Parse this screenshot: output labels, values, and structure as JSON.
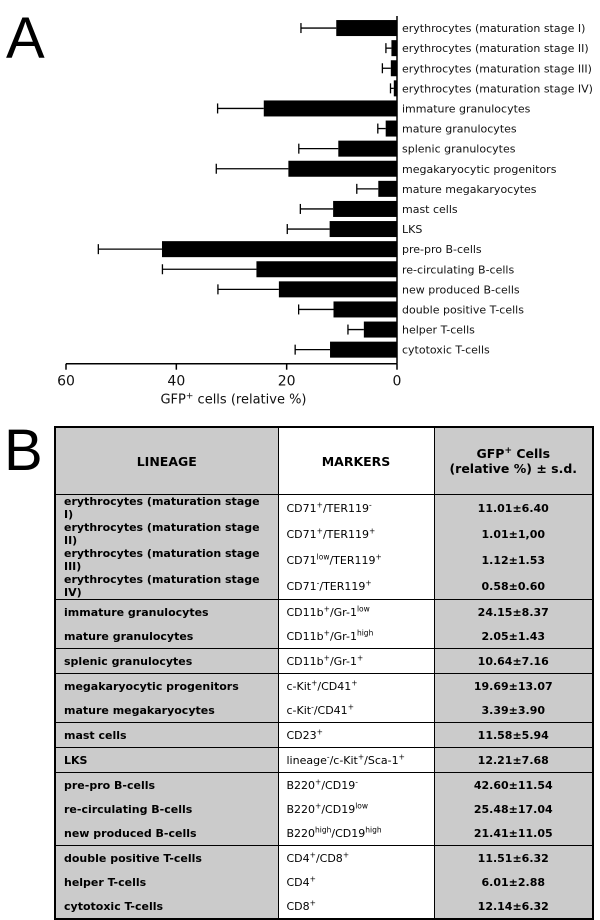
{
  "panel_a_label": "A",
  "panel_b_label": "B",
  "chart_data": {
    "type": "bar",
    "orientation": "horizontal",
    "categories": [
      "erythrocytes (maturation stage I)",
      "erythrocytes (maturation stage II)",
      "erythrocytes (maturation stage III)",
      "erythrocytes (maturation stage IV)",
      "immature granulocytes",
      "mature granulocytes",
      "splenic granulocytes",
      "megakaryocytic progenitors",
      "mature megakaryocytes",
      "mast cells",
      "LKS",
      "pre-pro B-cells",
      "re-circulating B-cells",
      "new produced B-cells",
      "double positive T-cells",
      "helper T-cells",
      "cytotoxic T-cells"
    ],
    "values": [
      11.01,
      1.01,
      1.12,
      0.58,
      24.15,
      2.05,
      10.64,
      19.69,
      3.39,
      11.58,
      12.21,
      42.6,
      25.48,
      21.41,
      11.51,
      6.01,
      12.14
    ],
    "errors": [
      6.4,
      1.0,
      1.53,
      0.6,
      8.37,
      1.43,
      7.16,
      13.07,
      3.9,
      5.94,
      7.68,
      11.54,
      17.04,
      11.05,
      6.32,
      2.88,
      6.32
    ],
    "xlim": [
      60,
      0
    ],
    "xticks": [
      "60",
      "40",
      "20",
      "0"
    ],
    "xlabel": "GFP",
    "xlabel_sup": "+",
    "xlabel_rest": " cells (relative %)",
    "bar_color": "#000000"
  },
  "table": {
    "headers": {
      "lineage": "LINEAGE",
      "markers": "MARKERS",
      "gfp_line1": "GFP",
      "gfp_sup": "+",
      "gfp_line1_rest": " Cells",
      "gfp_line2": "(relative %) ± s.d."
    },
    "rows": [
      {
        "lineage": "erythrocytes (maturation stage I)",
        "markers": [
          [
            "CD71",
            "+"
          ],
          [
            "/TER119",
            "-"
          ]
        ],
        "value": "11.01±6.40",
        "group_start": true
      },
      {
        "lineage": "erythrocytes (maturation stage II)",
        "markers": [
          [
            "CD71",
            "+"
          ],
          [
            "/TER119",
            "+"
          ]
        ],
        "value": "1.01±1,00",
        "group_start": false
      },
      {
        "lineage": "erythrocytes (maturation stage III)",
        "markers": [
          [
            "CD71",
            "low"
          ],
          [
            "/TER119",
            "+"
          ]
        ],
        "value": "1.12±1.53",
        "group_start": false
      },
      {
        "lineage": "erythrocytes (maturation stage IV)",
        "markers": [
          [
            "CD71",
            "-"
          ],
          [
            "/TER119",
            "+"
          ]
        ],
        "value": "0.58±0.60",
        "group_start": false
      },
      {
        "lineage": "immature granulocytes",
        "markers": [
          [
            "CD11b",
            "+"
          ],
          [
            "/Gr-1",
            "low"
          ]
        ],
        "value": "24.15±8.37",
        "group_start": true
      },
      {
        "lineage": "mature granulocytes",
        "markers": [
          [
            "CD11b",
            "+"
          ],
          [
            "/Gr-1",
            "high"
          ]
        ],
        "value": "2.05±1.43",
        "group_start": false
      },
      {
        "lineage": "splenic granulocytes",
        "markers": [
          [
            "CD11b",
            "+"
          ],
          [
            "/Gr-1",
            "+"
          ]
        ],
        "value": "10.64±7.16",
        "group_start": true
      },
      {
        "lineage": "megakaryocytic progenitors",
        "markers": [
          [
            "c-Kit",
            "+"
          ],
          [
            "/CD41",
            "+"
          ]
        ],
        "value": "19.69±13.07",
        "group_start": true
      },
      {
        "lineage": "mature megakaryocytes",
        "markers": [
          [
            "c-Kit",
            "-"
          ],
          [
            "/CD41",
            "+"
          ]
        ],
        "value": "3.39±3.90",
        "group_start": false
      },
      {
        "lineage": "mast cells",
        "markers": [
          [
            "CD23",
            "+"
          ]
        ],
        "value": "11.58±5.94",
        "group_start": true
      },
      {
        "lineage": "LKS",
        "markers": [
          [
            "lineage",
            "-"
          ],
          [
            "/c-Kit",
            "+"
          ],
          [
            "/Sca-1",
            "+"
          ]
        ],
        "value": "12.21±7.68",
        "group_start": true
      },
      {
        "lineage": "pre-pro B-cells",
        "markers": [
          [
            "B220",
            "+"
          ],
          [
            "/CD19",
            "-"
          ]
        ],
        "value": "42.60±11.54",
        "group_start": true
      },
      {
        "lineage": "re-circulating B-cells",
        "markers": [
          [
            "B220",
            "+"
          ],
          [
            "/CD19",
            "low"
          ]
        ],
        "value": "25.48±17.04",
        "group_start": false
      },
      {
        "lineage": "new produced B-cells",
        "markers": [
          [
            "B220",
            "high"
          ],
          [
            "/CD19",
            "high"
          ]
        ],
        "value": "21.41±11.05",
        "group_start": false
      },
      {
        "lineage": "double positive T-cells",
        "markers": [
          [
            "CD4",
            "+"
          ],
          [
            "/CD8",
            "+"
          ]
        ],
        "value": "11.51±6.32",
        "group_start": true
      },
      {
        "lineage": "helper T-cells",
        "markers": [
          [
            "CD4",
            "+"
          ]
        ],
        "value": "6.01±2.88",
        "group_start": false
      },
      {
        "lineage": "cytotoxic T-cells",
        "markers": [
          [
            "CD8",
            "+"
          ]
        ],
        "value": "12.14±6.32",
        "group_start": false
      }
    ]
  },
  "colors": {
    "table_gray": "#cbcbcb",
    "bar": "#000000"
  }
}
